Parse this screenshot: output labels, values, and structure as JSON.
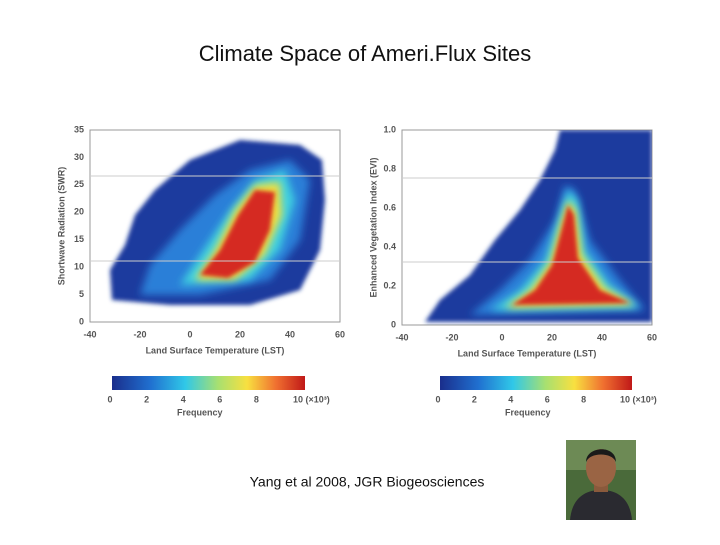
{
  "title": "Climate Space of Ameri.Flux Sites",
  "panels": [
    {
      "y_axis_label": "Shortwave Radiation (SWR)",
      "x_axis_label": "Land Surface Temperature (LST)",
      "y_ticks": [
        "0",
        "5",
        "10",
        "15",
        "20",
        "25",
        "30",
        "35"
      ],
      "x_ticks": [
        "-40",
        "-20",
        "0",
        "20",
        "40",
        "60"
      ],
      "colorbar": {
        "ticks": [
          "0",
          "2",
          "4",
          "6",
          "8",
          "10 (×10³)"
        ],
        "label": "Frequency"
      }
    },
    {
      "y_axis_label": "Enhanced Vegetation Index (EVI)",
      "x_axis_label": "Land Surface Temperature (LST)",
      "y_ticks": [
        "0",
        "0.2",
        "0.4",
        "0.6",
        "0.8",
        "1.0"
      ],
      "x_ticks": [
        "-40",
        "-20",
        "0",
        "20",
        "40",
        "60"
      ],
      "colorbar": {
        "ticks": [
          "0",
          "2",
          "4",
          "6",
          "8",
          "10 (×10³)"
        ],
        "label": "Frequency"
      }
    }
  ],
  "caption": "Yang et al 2008, JGR Biogeosciences"
}
